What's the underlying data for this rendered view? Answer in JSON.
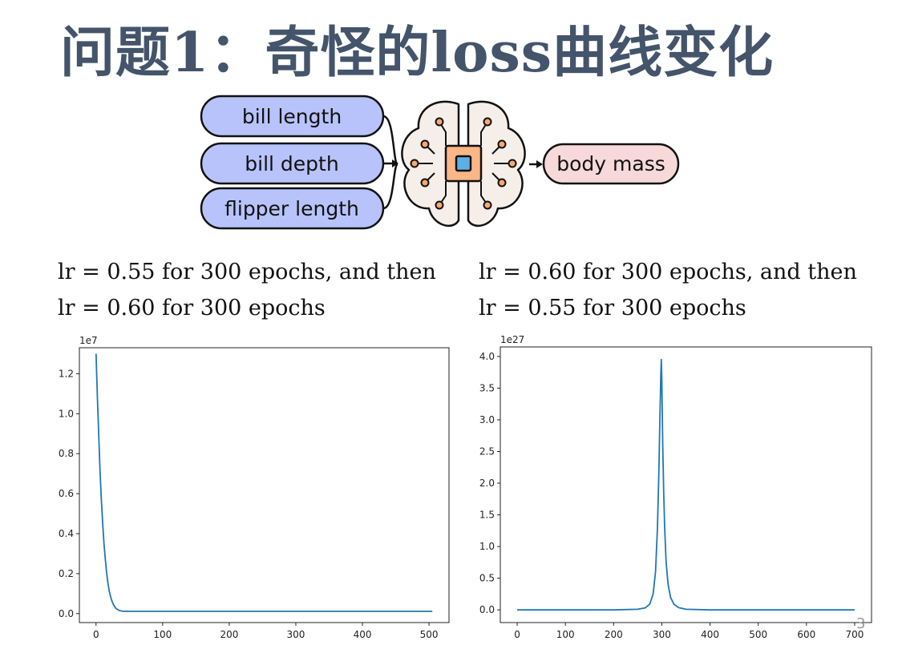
{
  "slide": {
    "title": "问题1：奇怪的loss曲线变化",
    "page_number": "3"
  },
  "diagram": {
    "inputs": [
      "bill length",
      "bill depth",
      "flipper length"
    ],
    "output": "body mass",
    "center_icon": "brain-chip-icon",
    "input_color": "#b8c3fb",
    "output_color": "#f6d9d8"
  },
  "captions": {
    "left": [
      "lr = 0.55 for 300 epochs, and then",
      "lr = 0.60 for 300 epochs"
    ],
    "right": [
      "lr = 0.60 for 300 epochs, and then",
      "lr = 0.55 for 300 epochs"
    ]
  },
  "chart_data": [
    {
      "type": "line",
      "title": "",
      "xlabel": "",
      "ylabel": "",
      "y_multiplier": "1e7",
      "xlim": [
        -25,
        530
      ],
      "ylim": [
        -0.045,
        1.33
      ],
      "xticks": [
        0,
        100,
        200,
        300,
        400,
        500
      ],
      "yticks": [
        0.0,
        0.2,
        0.4,
        0.6,
        0.8,
        1.0,
        1.2
      ],
      "ytick_labels": [
        "0.0",
        "0.2",
        "0.4",
        "0.6",
        "0.8",
        "1.0",
        "1.2"
      ],
      "grid": false,
      "color": "#1f77b4",
      "series": [
        {
          "x": [
            0,
            2,
            4,
            6,
            8,
            10,
            12,
            14,
            16,
            18,
            20,
            23,
            26,
            30,
            35,
            40,
            50,
            75,
            100,
            200,
            300,
            400,
            505
          ],
          "y": [
            1.3,
            1.09,
            0.9,
            0.72,
            0.57,
            0.45,
            0.35,
            0.27,
            0.2,
            0.15,
            0.11,
            0.07,
            0.045,
            0.025,
            0.015,
            0.012,
            0.011,
            0.011,
            0.011,
            0.011,
            0.011,
            0.011,
            0.011
          ]
        }
      ]
    },
    {
      "type": "line",
      "title": "",
      "xlabel": "",
      "ylabel": "",
      "y_multiplier": "1e27",
      "xlim": [
        -35,
        735
      ],
      "ylim": [
        -0.2,
        4.15
      ],
      "xticks": [
        0,
        100,
        200,
        300,
        400,
        500,
        600,
        700
      ],
      "yticks": [
        0.0,
        0.5,
        1.0,
        1.5,
        2.0,
        2.5,
        3.0,
        3.5,
        4.0
      ],
      "ytick_labels": [
        "0.0",
        "0.5",
        "1.0",
        "1.5",
        "2.0",
        "2.5",
        "3.0",
        "3.5",
        "4.0"
      ],
      "grid": false,
      "color": "#1f77b4",
      "series": [
        {
          "x": [
            0,
            100,
            200,
            250,
            265,
            275,
            282,
            287,
            291,
            294,
            296,
            298,
            299,
            300,
            301,
            302,
            304,
            306,
            309,
            313,
            318,
            325,
            335,
            350,
            400,
            500,
            600,
            700
          ],
          "y": [
            0.0,
            0.0,
            0.0,
            0.01,
            0.03,
            0.09,
            0.25,
            0.6,
            1.3,
            2.2,
            3.0,
            3.7,
            3.95,
            3.65,
            3.1,
            2.6,
            1.85,
            1.3,
            0.75,
            0.4,
            0.2,
            0.09,
            0.035,
            0.01,
            0.0,
            0.0,
            0.0,
            0.0
          ]
        }
      ]
    }
  ]
}
